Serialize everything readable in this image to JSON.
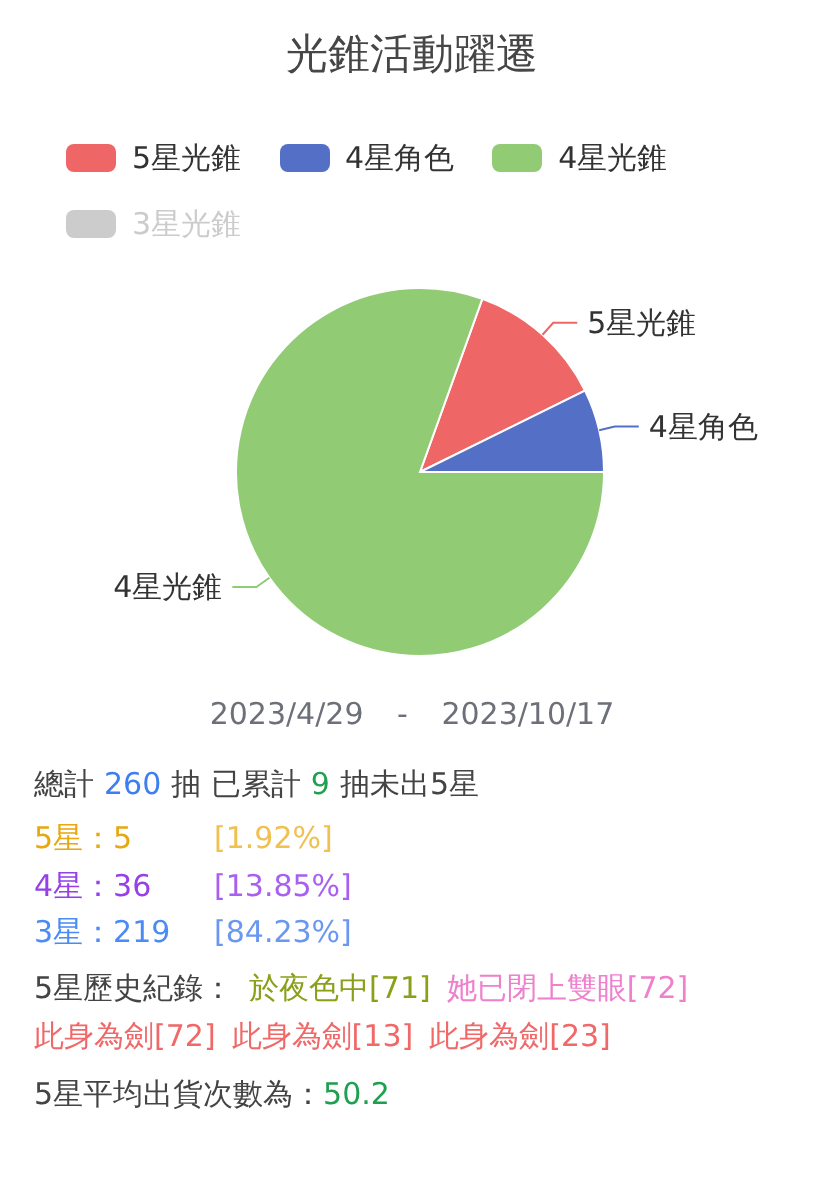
{
  "chart_data": {
    "type": "pie",
    "title": "光錐活動躍遷",
    "categories": [
      "5星光錐",
      "4星角色",
      "4星光錐",
      "3星光錐"
    ],
    "values": [
      12.2,
      7.3,
      80.5,
      null
    ],
    "colors": [
      "#ee6666",
      "#5470c6",
      "#91cc75",
      "#cccccc"
    ],
    "legend": "top",
    "annotations": [
      "2023/4/29 - 2023/10/17",
      "總計",
      "260",
      "抽 已累計",
      "9",
      "抽未出5星",
      "5星：5",
      "[1.92%]",
      "4星：36",
      "[13.85%]",
      "3星：219",
      "[84.23%]",
      "5星歷史紀錄：",
      "於夜色中[71]",
      "她已閉上雙眼[72]",
      "此身為劍[72]",
      "此身為劍[13]",
      "此身為劍[23]",
      "5星平均出貨次數為：",
      "50.2"
    ]
  }
}
